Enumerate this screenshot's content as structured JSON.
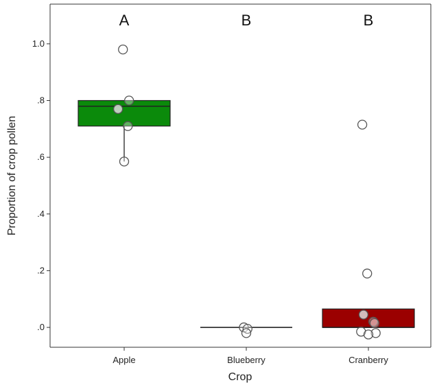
{
  "chart_data": {
    "type": "boxplot",
    "xlabel": "Crop",
    "ylabel": "Proportion of crop pollen",
    "ylim": [
      -0.07,
      1.14
    ],
    "yticks": [
      {
        "value": 0.0,
        "label": ".0"
      },
      {
        "value": 0.2,
        "label": ".2"
      },
      {
        "value": 0.4,
        "label": ".4"
      },
      {
        "value": 0.6,
        "label": ".6"
      },
      {
        "value": 0.8,
        "label": ".8"
      },
      {
        "value": 1.0,
        "label": "1.0"
      }
    ],
    "grid": false,
    "categories": [
      "Apple",
      "Blueberry",
      "Cranberry"
    ],
    "groups": [
      {
        "category": "Apple",
        "letter": "A",
        "fill": "#0b8a0b",
        "q1": 0.71,
        "median": 0.78,
        "q3": 0.8,
        "whisker_low": 0.585,
        "whisker_high": 0.8,
        "points": [
          {
            "x": -0.01,
            "y": 0.98
          },
          {
            "x": 0.04,
            "y": 0.8
          },
          {
            "x": -0.05,
            "y": 0.77,
            "highlight": true
          },
          {
            "x": 0.03,
            "y": 0.71
          },
          {
            "x": 0.0,
            "y": 0.585
          }
        ]
      },
      {
        "category": "Blueberry",
        "letter": "B",
        "fill": "#d9d9d9",
        "q1": 0.0,
        "median": 0.0,
        "q3": 0.0,
        "whisker_low": 0.0,
        "whisker_high": 0.0,
        "points": [
          {
            "x": -0.02,
            "y": 0.0
          },
          {
            "x": 0.01,
            "y": -0.005
          },
          {
            "x": 0.0,
            "y": -0.02
          }
        ]
      },
      {
        "category": "Cranberry",
        "letter": "B",
        "fill": "#9b0000",
        "q1": 0.0,
        "median": 0.0,
        "q3": 0.065,
        "whisker_low": 0.0,
        "whisker_high": 0.065,
        "points": [
          {
            "x": -0.05,
            "y": 0.715
          },
          {
            "x": -0.01,
            "y": 0.19
          },
          {
            "x": -0.04,
            "y": 0.045,
            "highlight": true
          },
          {
            "x": 0.04,
            "y": 0.02
          },
          {
            "x": 0.05,
            "y": 0.015
          },
          {
            "x": -0.06,
            "y": -0.015
          },
          {
            "x": 0.06,
            "y": -0.02
          },
          {
            "x": 0.0,
            "y": -0.025
          }
        ]
      }
    ]
  }
}
